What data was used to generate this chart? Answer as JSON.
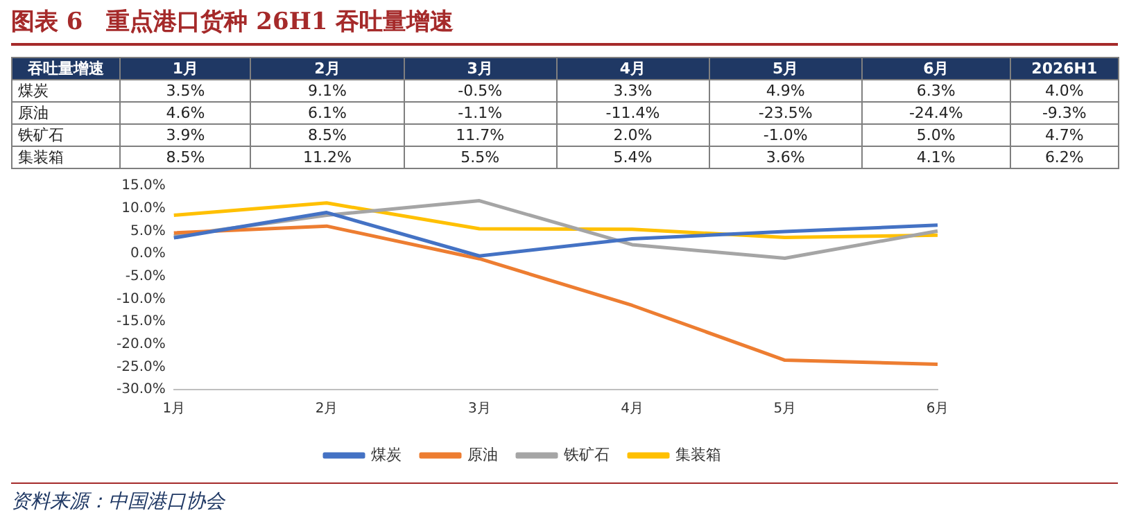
{
  "chart_data": {
    "type": "line",
    "title": "图表 6　重点港口货种 26H1 吞吐量增速",
    "categories": [
      "1月",
      "2月",
      "3月",
      "4月",
      "5月",
      "6月"
    ],
    "series": [
      {
        "name": "煤炭",
        "color": "#4472c4",
        "values": [
          3.5,
          9.1,
          -0.5,
          3.3,
          4.9,
          6.3
        ],
        "value_labels": [
          "3.5%",
          "9.1%",
          "-0.5%",
          "3.3%",
          "4.9%",
          "6.3%"
        ]
      },
      {
        "name": "原油",
        "color": "#ed7d31",
        "values": [
          4.6,
          6.1,
          -1.1,
          -11.4,
          -23.5,
          -24.4
        ],
        "value_labels": [
          "4.6%",
          "6.1%",
          "-1.1%",
          "-11.4%",
          "-23.5%",
          "-24.4%"
        ]
      },
      {
        "name": "铁矿石",
        "color": "#a5a5a5",
        "values": [
          3.9,
          8.5,
          11.7,
          2.0,
          -1.0,
          5.0
        ],
        "value_labels": [
          "3.9%",
          "8.5%",
          "11.7%",
          "2.0%",
          "-1.0%",
          "5.0%"
        ]
      },
      {
        "name": "集装箱",
        "color": "#ffc000",
        "values": [
          8.5,
          11.2,
          5.5,
          5.4,
          3.6,
          4.1
        ],
        "value_labels": [
          "8.5%",
          "11.2%",
          "5.5%",
          "5.4%",
          "3.6%",
          "4.1%"
        ]
      }
    ],
    "ylim": [
      -30,
      15
    ],
    "yticks": [
      {
        "value": -30,
        "label": "-30.0%"
      },
      {
        "value": -25,
        "label": "-25.0%"
      },
      {
        "value": -20,
        "label": "-20.0%"
      },
      {
        "value": -15,
        "label": "-15.0%"
      },
      {
        "value": -10,
        "label": "-10.0%"
      },
      {
        "value": -5,
        "label": "-5.0%"
      },
      {
        "value": 0,
        "label": "0.0%"
      },
      {
        "value": 5,
        "label": "5.0%"
      },
      {
        "value": 10,
        "label": "10.0%"
      },
      {
        "value": 15,
        "label": "15.0%"
      }
    ],
    "legend": "bottom",
    "marker": "none",
    "line_style": "solid",
    "annotations": [
      "吞吐量增速",
      "2026H1",
      "4.0%",
      "-9.3%",
      "4.7%",
      "6.2%",
      "资料来源：中国港口协会"
    ]
  }
}
